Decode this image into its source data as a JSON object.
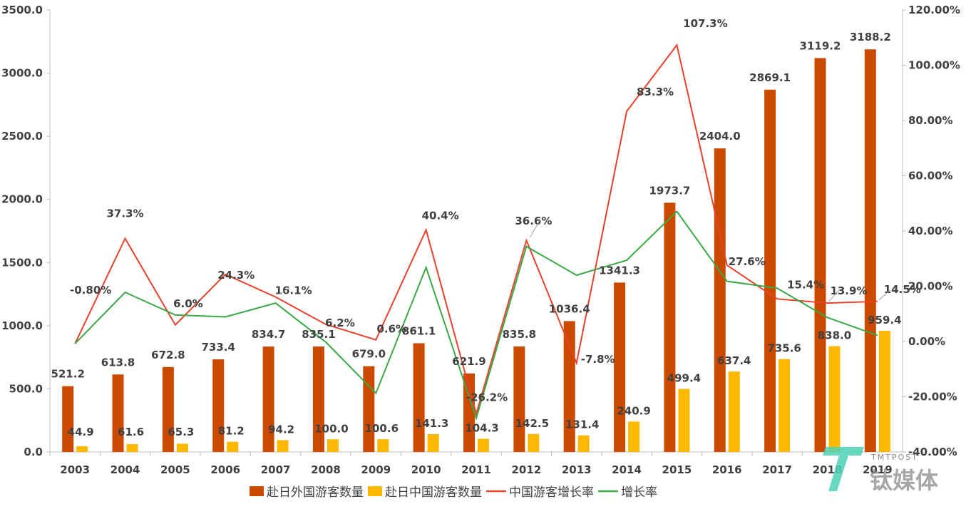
{
  "chart_data": {
    "type": "bar",
    "categories": [
      "2003",
      "2004",
      "2005",
      "2006",
      "2007",
      "2008",
      "2009",
      "2010",
      "2011",
      "2012",
      "2013",
      "2014",
      "2015",
      "2016",
      "2017",
      "2018",
      "2019"
    ],
    "series": [
      {
        "name": "赴日外国游客数量",
        "kind": "bar",
        "axis": "left",
        "color": "#CC4A00",
        "values": [
          521.2,
          613.8,
          672.8,
          733.4,
          834.7,
          835.1,
          679.0,
          861.1,
          621.9,
          835.8,
          1036.4,
          1341.3,
          1973.7,
          2404.0,
          2869.1,
          3119.2,
          3188.2
        ],
        "labels": [
          "521.2",
          "613.8",
          "672.8",
          "733.4",
          "834.7",
          "835.1",
          "679.0",
          "861.1",
          "621.9",
          "835.8",
          "1036.4",
          "1341.3",
          "1973.7",
          "2404.0",
          "2869.1",
          "3119.2",
          "3188.2"
        ]
      },
      {
        "name": "赴日中国游客数量",
        "kind": "bar",
        "axis": "left",
        "color": "#FFB800",
        "values": [
          44.9,
          61.6,
          65.3,
          81.2,
          94.2,
          100.0,
          100.6,
          141.3,
          104.3,
          142.5,
          131.4,
          240.9,
          499.4,
          637.4,
          735.6,
          838.0,
          959.4
        ],
        "labels": [
          "44.9",
          "61.6",
          "65.3",
          "81.2",
          "94.2",
          "100.0",
          "100.6",
          "141.3",
          "104.3",
          "142.5",
          "131.4",
          "240.9",
          "499.4",
          "637.4",
          "735.6",
          "838.0",
          "959.4"
        ]
      },
      {
        "name": "中国游客增长率",
        "kind": "line",
        "axis": "right",
        "color": "#E8412C",
        "values": [
          -0.8,
          37.3,
          6.0,
          24.3,
          16.1,
          6.2,
          0.6,
          40.4,
          -26.2,
          36.6,
          -7.8,
          83.3,
          107.3,
          27.6,
          15.4,
          13.9,
          14.5
        ],
        "labels": [
          "-0.80%",
          "37.3%",
          "6.0%",
          "24.3%",
          "16.1%",
          "6.2%",
          "0.6%",
          "40.4%",
          "-26.2%",
          "36.6%",
          "-7.8%",
          "83.3%",
          "107.3%",
          "27.6%",
          "15.4%",
          "13.9%",
          "14.5%"
        ]
      },
      {
        "name": "增长率",
        "kind": "line",
        "axis": "right",
        "color": "#3AA845",
        "values": [
          -0.8,
          17.8,
          9.6,
          8.9,
          13.9,
          -0.2,
          -18.7,
          26.8,
          -27.8,
          34.4,
          24.0,
          29.4,
          47.1,
          21.8,
          19.3,
          8.7,
          2.2
        ]
      }
    ],
    "y_left": {
      "min": 0,
      "max": 3500,
      "ticks": [
        "0.0",
        "500.0",
        "1000.0",
        "1500.0",
        "2000.0",
        "2500.0",
        "3000.0",
        "3500.0"
      ]
    },
    "y_right": {
      "min": -40,
      "max": 120,
      "ticks": [
        "-40.00%",
        "-20.00%",
        "0.00%",
        "20.00%",
        "40.00%",
        "60.00%",
        "80.00%",
        "100.00%",
        "120.00%"
      ]
    },
    "grid": false,
    "legend_position": "bottom"
  },
  "watermark": {
    "text": "钛媒体",
    "sub": "TMTPOST"
  }
}
